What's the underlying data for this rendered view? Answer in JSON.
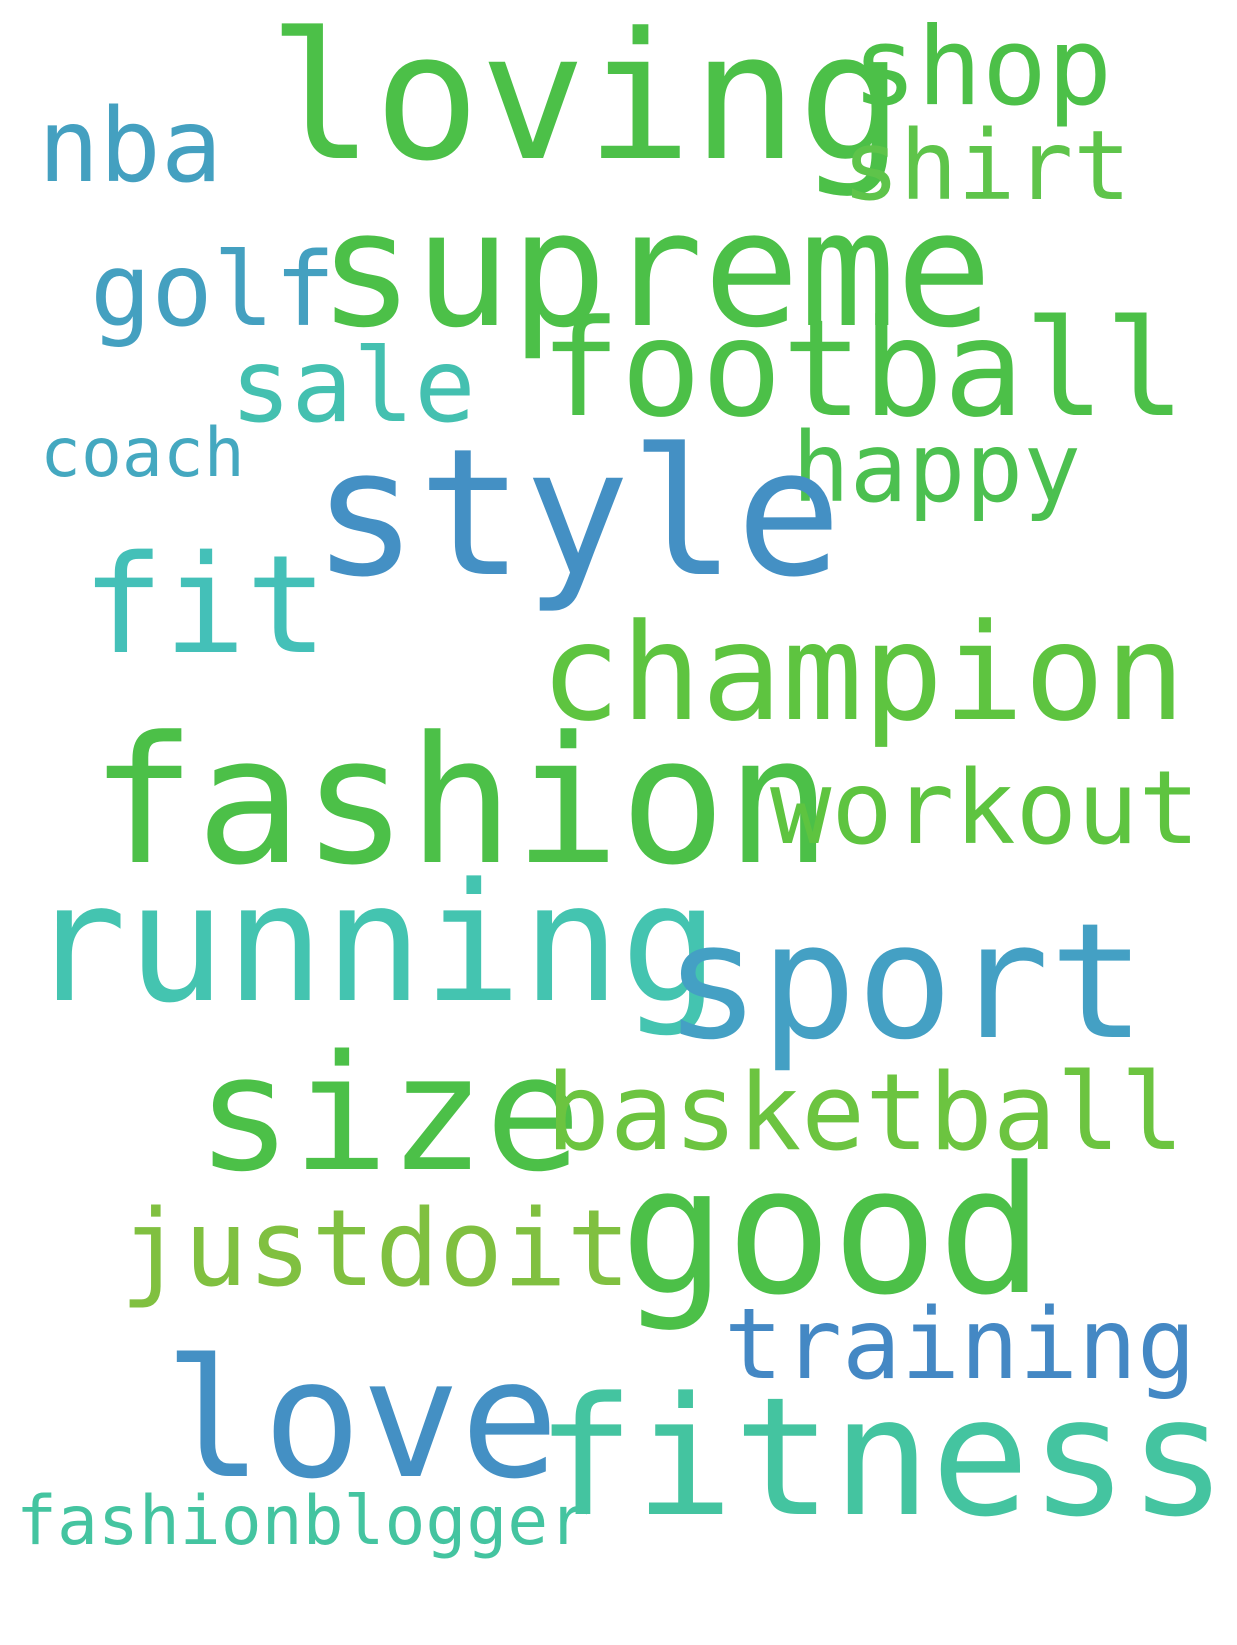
{
  "word_cloud": {
    "background": "#ffffff",
    "words": [
      {
        "text": "loving",
        "color": "#4cc048"
      },
      {
        "text": "shop",
        "color": "#4cc048"
      },
      {
        "text": "nba",
        "color": "#44a0c0"
      },
      {
        "text": "shirt",
        "color": "#5ec44a"
      },
      {
        "text": "supreme",
        "color": "#4cc048"
      },
      {
        "text": "golf",
        "color": "#44a0c0"
      },
      {
        "text": "football",
        "color": "#4cc048"
      },
      {
        "text": "sale",
        "color": "#44c0b0"
      },
      {
        "text": "coach",
        "color": "#44a8c0"
      },
      {
        "text": "happy",
        "color": "#4cc050"
      },
      {
        "text": "style",
        "color": "#4490c4"
      },
      {
        "text": "fit",
        "color": "#44c0b8"
      },
      {
        "text": "champion",
        "color": "#5ec440"
      },
      {
        "text": "fashion",
        "color": "#4cc048"
      },
      {
        "text": "workout",
        "color": "#5ec440"
      },
      {
        "text": "running",
        "color": "#44c4b0"
      },
      {
        "text": "sport",
        "color": "#44a0c4"
      },
      {
        "text": "size",
        "color": "#4cc048"
      },
      {
        "text": "basketball",
        "color": "#6cc440"
      },
      {
        "text": "justdoit",
        "color": "#80c040"
      },
      {
        "text": "good",
        "color": "#4cc048"
      },
      {
        "text": "training",
        "color": "#4488c4"
      },
      {
        "text": "love",
        "color": "#4490c4"
      },
      {
        "text": "fitness",
        "color": "#44c4a0"
      },
      {
        "text": "fashionblogger",
        "color": "#44c4a0"
      }
    ]
  }
}
